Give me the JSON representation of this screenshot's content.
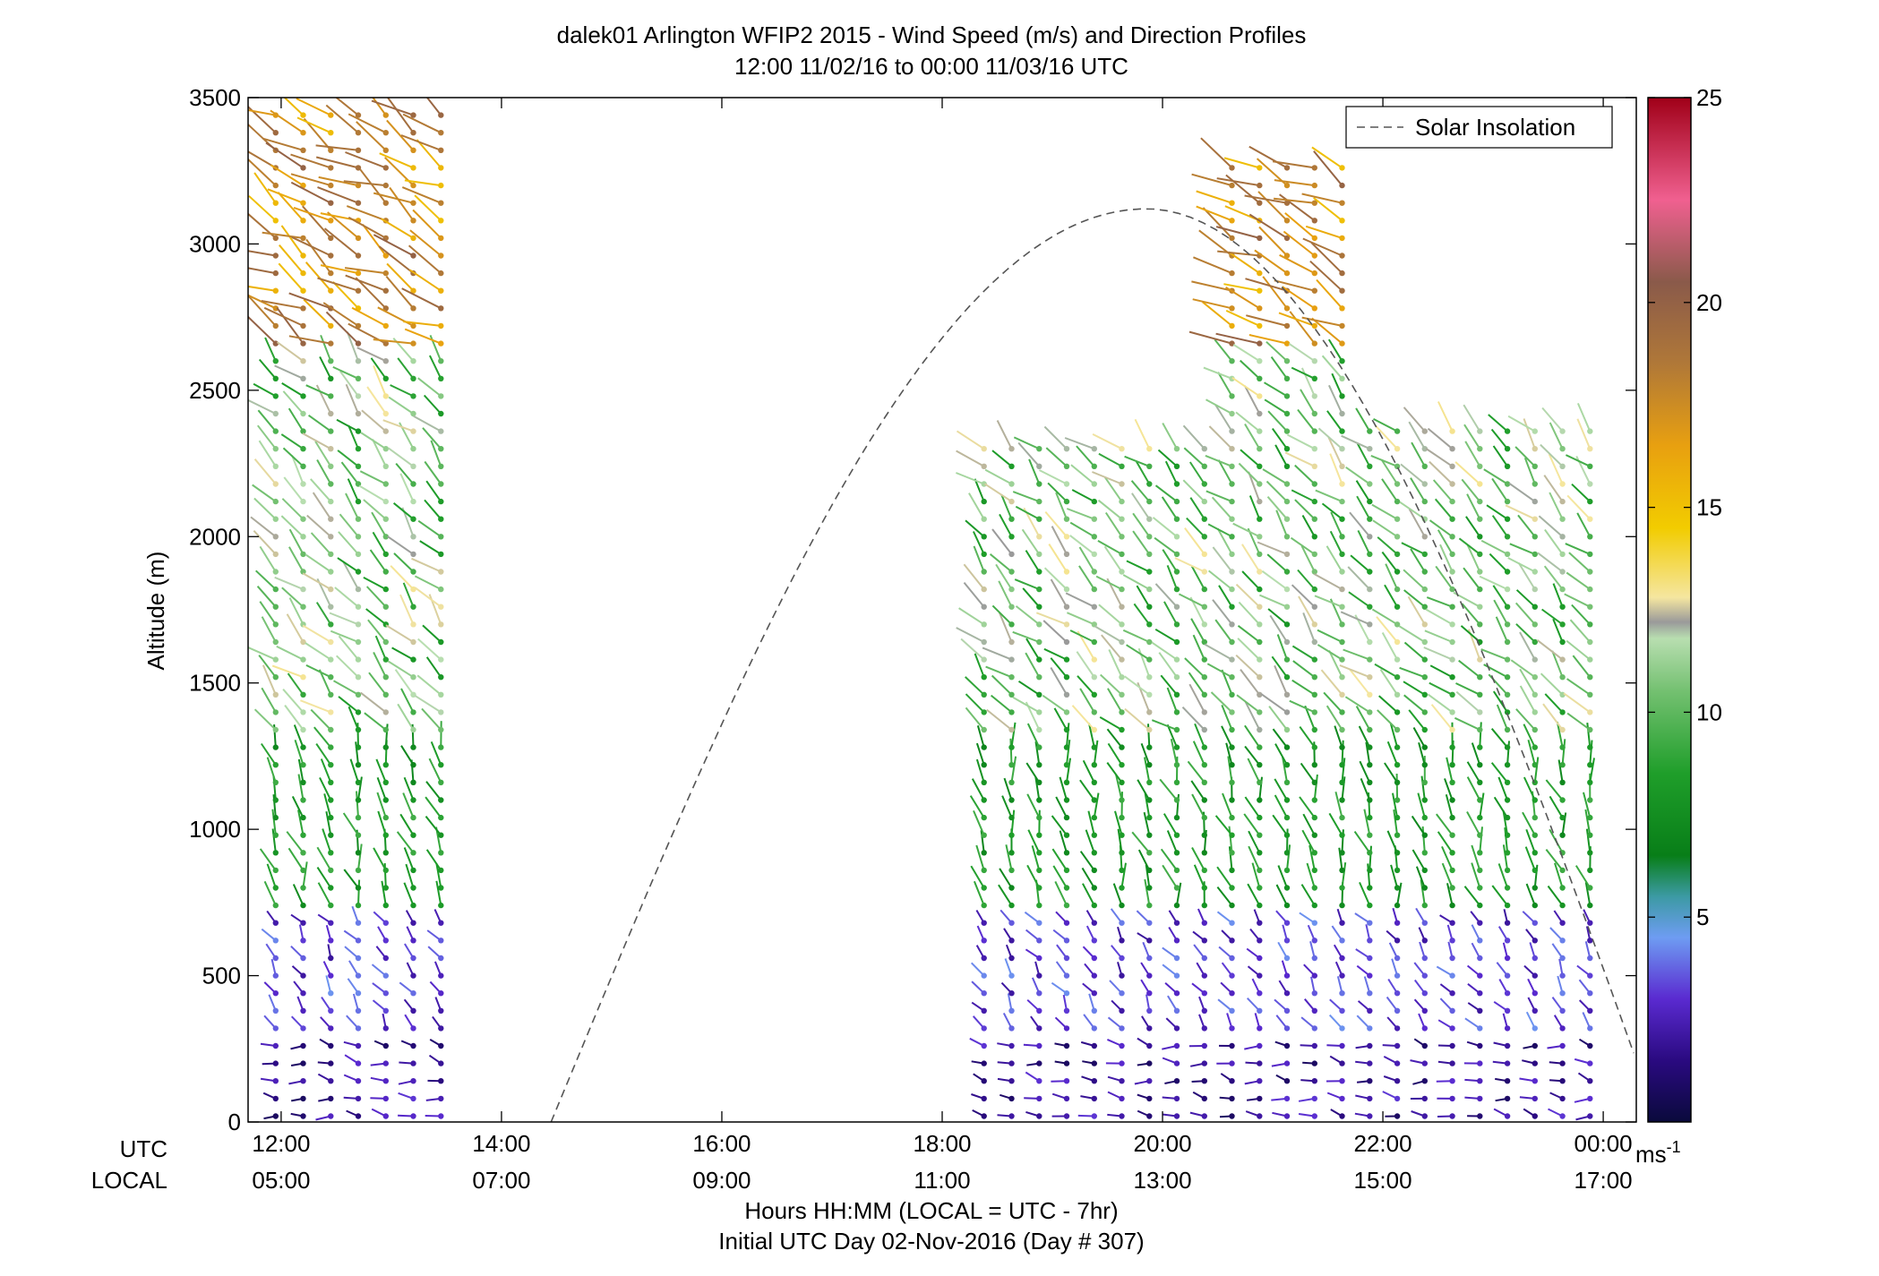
{
  "chart_data": {
    "type": "scatter",
    "title": "dalek01 Arlington WFIP2 2015 - Wind Speed (m/s) and Direction Profiles",
    "subtitle": "12:00 11/02/16 to 00:00 11/03/16  UTC",
    "ylabel": "Altitude (m)",
    "xlabel": "Hours HH:MM  (LOCAL = UTC - 7hr)",
    "xlabel2": "Initial UTC Day 02-Nov-2016 (Day # 307)",
    "xrow_utc_label": "UTC",
    "xrow_local_label": "LOCAL",
    "xlim_hours": [
      11.7,
      24.3
    ],
    "ylim": [
      0,
      3500
    ],
    "yticks": [
      0,
      500,
      1000,
      1500,
      2000,
      2500,
      3000,
      3500
    ],
    "yticklabels": [
      "0",
      "500",
      "1000",
      "1500",
      "2000",
      "2500",
      "3000",
      "3500"
    ],
    "xticks_hours": [
      12,
      14,
      16,
      18,
      20,
      22,
      24
    ],
    "xticklabels_utc": [
      "12:00",
      "14:00",
      "16:00",
      "18:00",
      "20:00",
      "22:00",
      "00:00"
    ],
    "xticklabels_local": [
      "05:00",
      "07:00",
      "09:00",
      "11:00",
      "13:00",
      "15:00",
      "17:00"
    ],
    "grid": false,
    "legend": {
      "label": "Solar Insolation",
      "placement": "top-right"
    },
    "solar_insolation": {
      "start_hour": 14.45,
      "peak_hour": 19.85,
      "end_hour": 24.5,
      "peak_altitude_equiv": 3120
    },
    "colorbar": {
      "unit": "ms",
      "unit_exp": "-1",
      "range": [
        0,
        25
      ],
      "ticks": [
        5,
        10,
        15,
        20,
        25
      ],
      "ticklabels": [
        "5",
        "10",
        "15",
        "20",
        "25"
      ],
      "stops": [
        {
          "v": 0,
          "c": "#0a0a3c"
        },
        {
          "v": 1.5,
          "c": "#2a0a80"
        },
        {
          "v": 3.0,
          "c": "#5a2ad0"
        },
        {
          "v": 4.5,
          "c": "#6e9cf2"
        },
        {
          "v": 5.5,
          "c": "#3c9aa4"
        },
        {
          "v": 6.5,
          "c": "#087e18"
        },
        {
          "v": 8.5,
          "c": "#1f9e2a"
        },
        {
          "v": 10.5,
          "c": "#73c070"
        },
        {
          "v": 11.8,
          "c": "#b8deb0"
        },
        {
          "v": 12.2,
          "c": "#9a9a9a"
        },
        {
          "v": 12.8,
          "c": "#f5e6a0"
        },
        {
          "v": 14.5,
          "c": "#f2cc00"
        },
        {
          "v": 16.5,
          "c": "#e8a010"
        },
        {
          "v": 18.5,
          "c": "#b07838"
        },
        {
          "v": 20.5,
          "c": "#8a5a4a"
        },
        {
          "v": 22.5,
          "c": "#f06090"
        },
        {
          "v": 25,
          "c": "#a00018"
        }
      ]
    },
    "profiles": {
      "time_segments": [
        {
          "start": 11.95,
          "end": 13.45,
          "step": 0.25
        },
        {
          "start": 18.38,
          "end": 23.95,
          "step": 0.25
        }
      ],
      "altitude_step_m": 60,
      "speed_units": "m/s",
      "layers": [
        {
          "max_alt": 300,
          "speed": 2.0,
          "dir_deg": 260
        },
        {
          "max_alt": 720,
          "speed": 3.2,
          "dir_deg": 215
        },
        {
          "max_alt": 1300,
          "speed": 8.2,
          "dir_deg": 195
        },
        {
          "max_alt": 2600,
          "speed": 10.5,
          "dir_deg": 225
        },
        {
          "max_alt": 3500,
          "speed": 17.5,
          "dir_deg": 240
        }
      ],
      "early_top_m": 3450,
      "late_top_start_m": 2300,
      "late_top_end_m": 2400,
      "late_top_peak_m": 3300
    }
  }
}
